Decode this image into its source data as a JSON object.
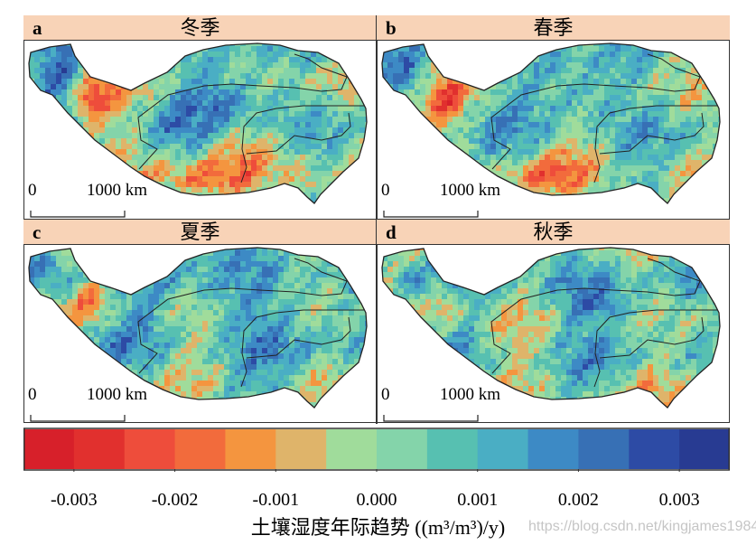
{
  "panels": [
    {
      "letter": "a",
      "season": "冬季"
    },
    {
      "letter": "b",
      "season": "春季"
    },
    {
      "letter": "c",
      "season": "夏季"
    },
    {
      "letter": "d",
      "season": "秋季"
    }
  ],
  "scale_bar": {
    "start": "0",
    "end": "1000 km"
  },
  "colorbar": {
    "range": [
      -0.0035,
      0.0035
    ],
    "colors": [
      "#d7202a",
      "#e1302e",
      "#ee4d3b",
      "#f26b3c",
      "#f4953f",
      "#dfb46a",
      "#a0dc9b",
      "#84d4aa",
      "#57c0b1",
      "#4aaec4",
      "#3d8ac5",
      "#3770b5",
      "#2d4ba5",
      "#283b92"
    ],
    "ticks": [
      "-0.003",
      "-0.002",
      "-0.001",
      "0.000",
      "0.001",
      "0.002",
      "0.003"
    ],
    "tick_values": [
      -0.003,
      -0.002,
      -0.001,
      0,
      0.001,
      0.002,
      0.003
    ],
    "title": "土壤湿度年际趋势 ((m³/m³)/y)"
  },
  "watermark": "https://blog.csdn.net/kingjames1984"
}
